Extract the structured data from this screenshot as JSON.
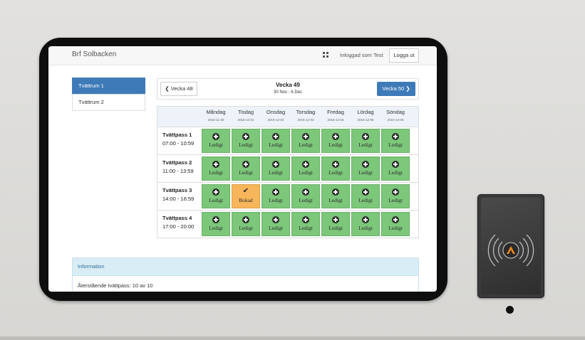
{
  "app": {
    "brand": "Brf Solbacken"
  },
  "navbar": {
    "logged_in_text": "Inloggad som Test",
    "logout_label": "Logga ut",
    "grid_icon": "apps-grid-icon"
  },
  "sidebar": {
    "items": [
      {
        "label": "Tvättrum 1",
        "active": true
      },
      {
        "label": "Tvättrum 2",
        "active": false
      }
    ]
  },
  "week": {
    "title": "Vecka 49",
    "range": "30 Nov - 6 Dec",
    "prev_label": "Vecka 48",
    "next_label": "Vecka 50"
  },
  "days": [
    {
      "name": "Måndag",
      "date": "2015-11-30"
    },
    {
      "name": "Tisdag",
      "date": "2015-12-01"
    },
    {
      "name": "Onsdag",
      "date": "2015-12-02"
    },
    {
      "name": "Torsdag",
      "date": "2015-12-03"
    },
    {
      "name": "Fredag",
      "date": "2015-12-04"
    },
    {
      "name": "Lördag",
      "date": "2015-12-05"
    },
    {
      "name": "Söndag",
      "date": "2015-12-06"
    }
  ],
  "slots": [
    {
      "name": "Tvättpass 1",
      "time": "07:00 - 10:59",
      "cells": [
        "Ledigt",
        "Ledigt",
        "Ledigt",
        "Ledigt",
        "Ledigt",
        "Ledigt",
        "Ledigt"
      ]
    },
    {
      "name": "Tvättpass 2",
      "time": "11:00 - 13:59",
      "cells": [
        "Ledigt",
        "Ledigt",
        "Ledigt",
        "Ledigt",
        "Ledigt",
        "Ledigt",
        "Ledigt"
      ]
    },
    {
      "name": "Tvättpass 3",
      "time": "14:00 - 16:59",
      "cells": [
        "Ledigt",
        "Bokad",
        "Ledigt",
        "Ledigt",
        "Ledigt",
        "Ledigt",
        "Ledigt"
      ]
    },
    {
      "name": "Tvättpass 4",
      "time": "17:00 - 20:00",
      "cells": [
        "Ledigt",
        "Ledigt",
        "Ledigt",
        "Ledigt",
        "Ledigt",
        "Ledigt",
        "Ledigt"
      ]
    }
  ],
  "colors": {
    "free": "#7cc77a",
    "booked": "#f7b65b",
    "primary": "#3f7ab8",
    "info_header": "#d9edf7"
  },
  "info": {
    "title": "Information",
    "remaining": "Återstående tvättpass: 10 av 10"
  }
}
